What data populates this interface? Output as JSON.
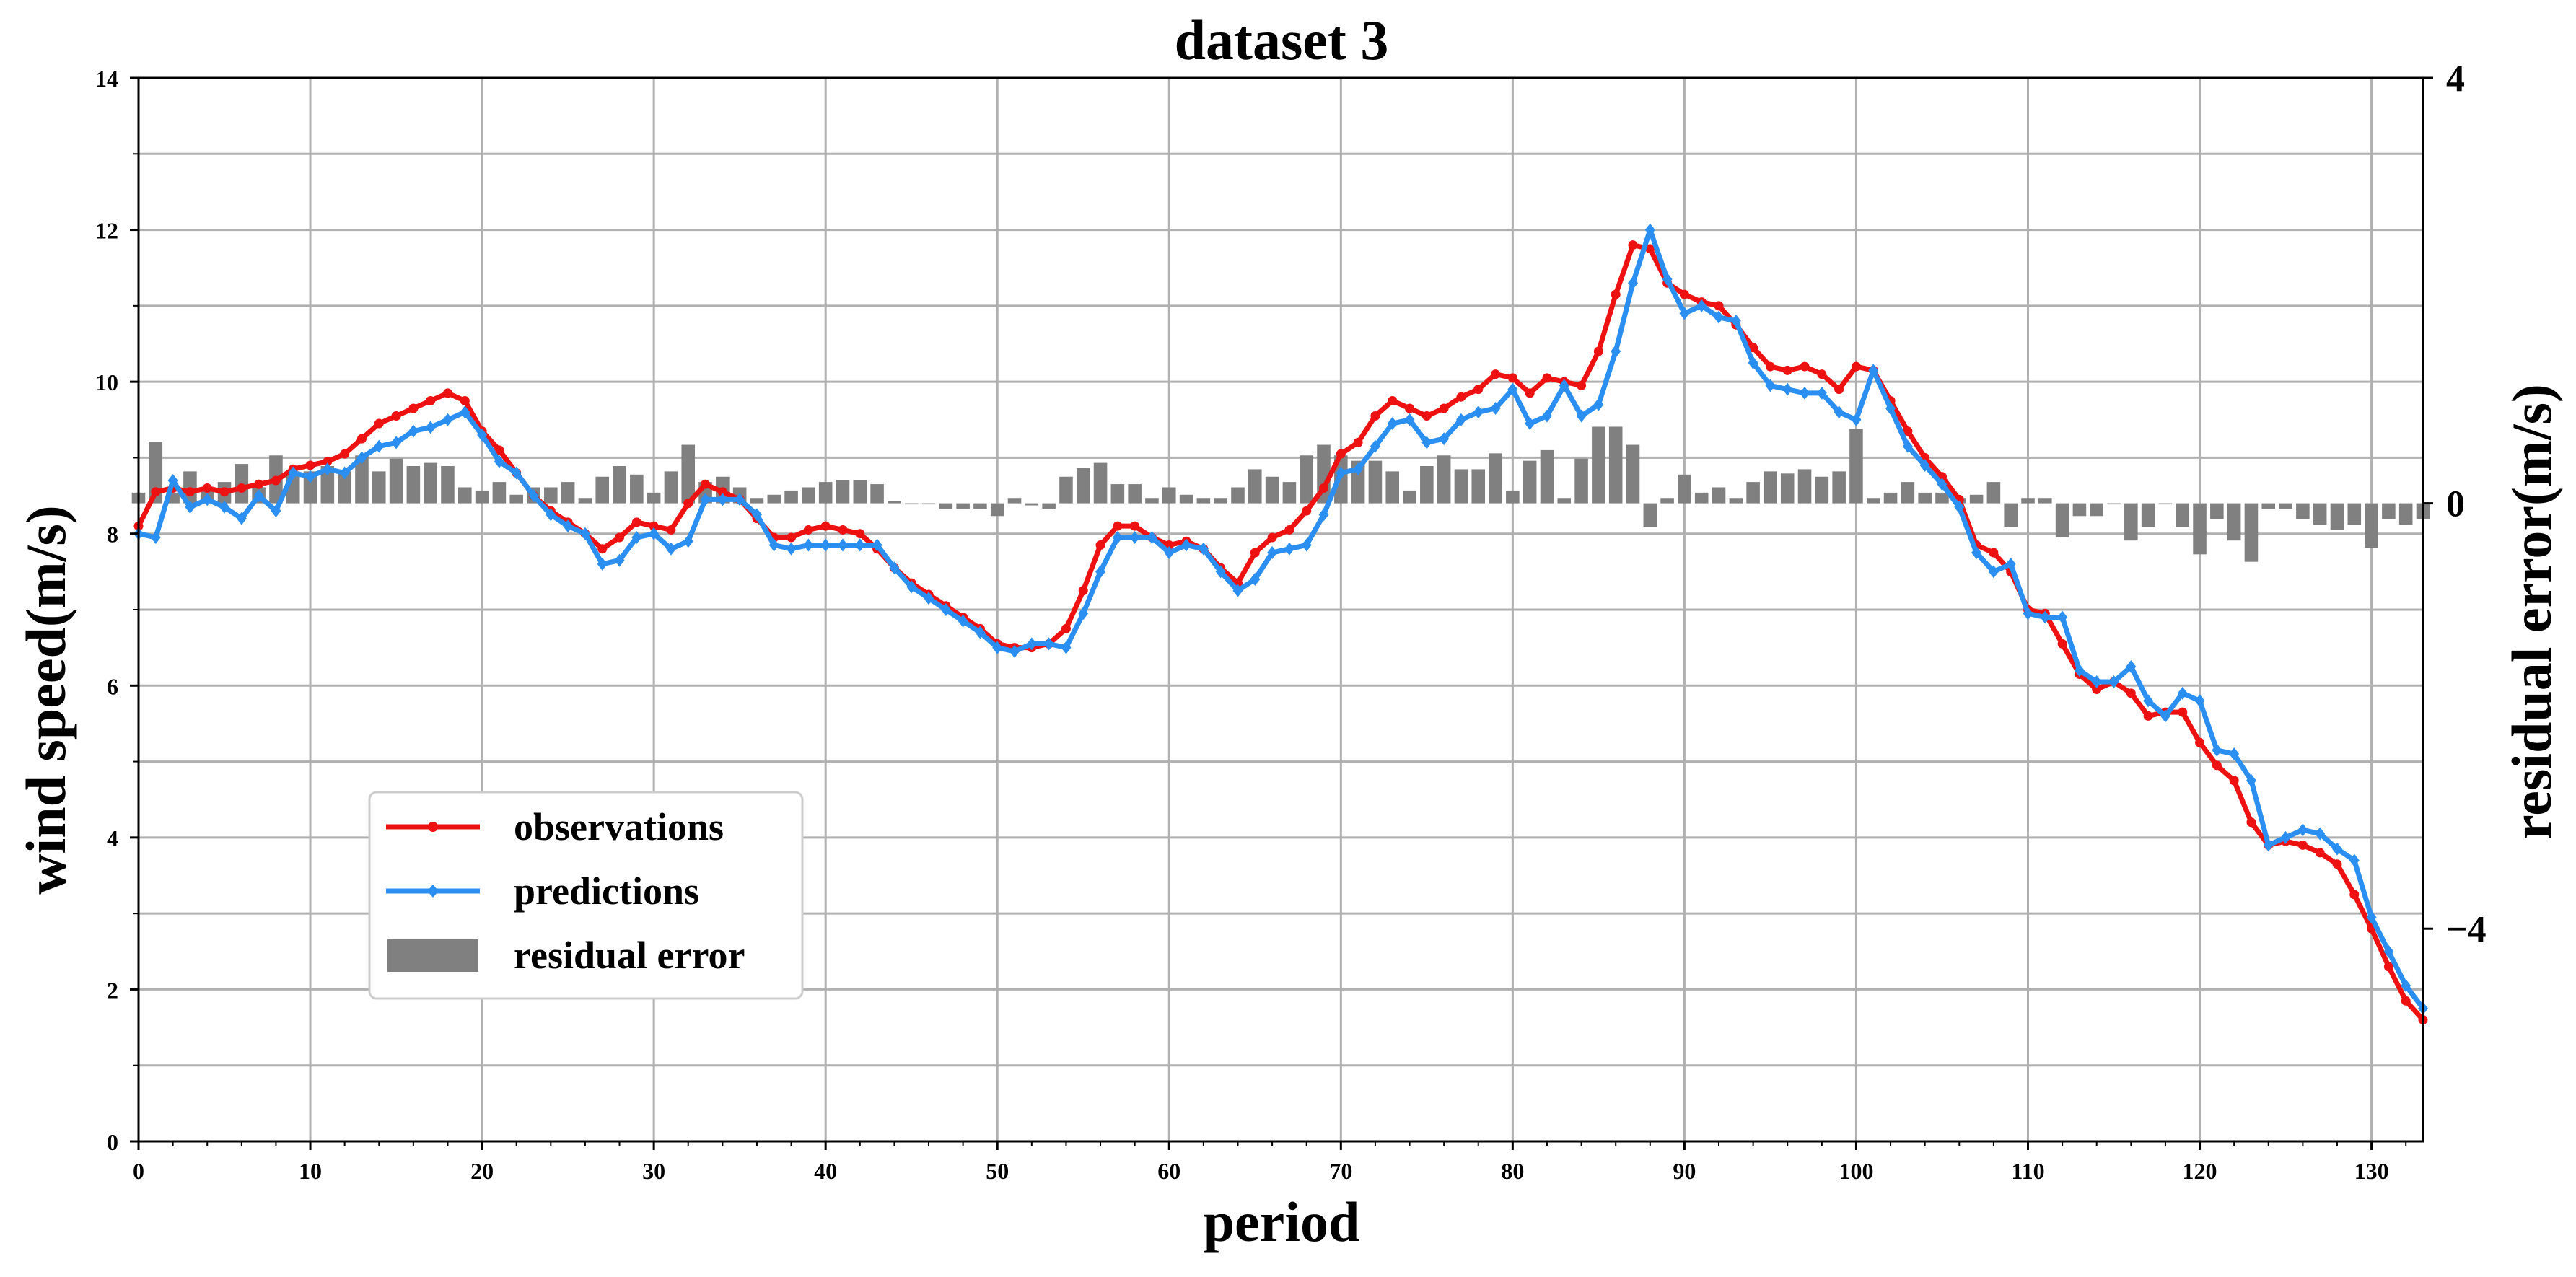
{
  "chart_data": {
    "type": "line",
    "title": "dataset 3",
    "xlabel": "period",
    "ylabel": "wind speed(m/s)",
    "y2label": "residual error(m/s)",
    "xlim": [
      0,
      133
    ],
    "ylim": [
      0,
      14
    ],
    "y2lim": [
      -6,
      4
    ],
    "xticks": [
      0,
      10,
      20,
      30,
      40,
      50,
      60,
      70,
      80,
      90,
      100,
      110,
      120,
      130
    ],
    "yticks": [
      0,
      2,
      4,
      6,
      8,
      10,
      12,
      14
    ],
    "y2ticks": [
      {
        "value": 4,
        "label": "4"
      },
      {
        "value": 0,
        "label": "0"
      },
      {
        "value": -4,
        "label": "−4"
      }
    ],
    "grid": true,
    "legend_position": "lower-left",
    "legend": [
      {
        "label": "observations",
        "kind": "line",
        "marker": "circle",
        "color": "#ee1111"
      },
      {
        "label": "predictions",
        "kind": "line",
        "marker": "diamond",
        "color": "#2a8ff0"
      },
      {
        "label": "residual error",
        "kind": "bar",
        "color": "#808080"
      }
    ],
    "x": [
      0,
      1,
      2,
      3,
      4,
      5,
      6,
      7,
      8,
      9,
      10,
      11,
      12,
      13,
      14,
      15,
      16,
      17,
      18,
      19,
      20,
      21,
      22,
      23,
      24,
      25,
      26,
      27,
      28,
      29,
      30,
      31,
      32,
      33,
      34,
      35,
      36,
      37,
      38,
      39,
      40,
      41,
      42,
      43,
      44,
      45,
      46,
      47,
      48,
      49,
      50,
      51,
      52,
      53,
      54,
      55,
      56,
      57,
      58,
      59,
      60,
      61,
      62,
      63,
      64,
      65,
      66,
      67,
      68,
      69,
      70,
      71,
      72,
      73,
      74,
      75,
      76,
      77,
      78,
      79,
      80,
      81,
      82,
      83,
      84,
      85,
      86,
      87,
      88,
      89,
      90,
      91,
      92,
      93,
      94,
      95,
      96,
      97,
      98,
      99,
      100,
      101,
      102,
      103,
      104,
      105,
      106,
      107,
      108,
      109,
      110,
      111,
      112,
      113,
      114,
      115,
      116,
      117,
      118,
      119,
      120,
      121,
      122,
      123,
      124,
      125,
      126,
      127,
      128,
      129,
      130,
      131,
      132,
      133
    ],
    "series": [
      {
        "name": "observations",
        "axis": "left",
        "color": "#ee1111",
        "values": [
          8.1,
          8.55,
          8.6,
          8.55,
          8.6,
          8.55,
          8.6,
          8.65,
          8.7,
          8.85,
          8.9,
          8.95,
          9.05,
          9.25,
          9.45,
          9.55,
          9.65,
          9.75,
          9.85,
          9.75,
          9.35,
          9.1,
          8.8,
          8.5,
          8.3,
          8.15,
          8.0,
          7.8,
          7.95,
          8.15,
          8.1,
          8.05,
          8.4,
          8.65,
          8.55,
          8.45,
          8.2,
          7.95,
          7.95,
          8.05,
          8.1,
          8.05,
          8.0,
          7.8,
          7.55,
          7.35,
          7.2,
          7.05,
          6.9,
          6.75,
          6.55,
          6.5,
          6.5,
          6.55,
          6.75,
          7.25,
          7.85,
          8.1,
          8.1,
          7.95,
          7.85,
          7.9,
          7.8,
          7.55,
          7.35,
          7.75,
          7.95,
          8.05,
          8.3,
          8.6,
          9.05,
          9.2,
          9.55,
          9.75,
          9.65,
          9.55,
          9.65,
          9.8,
          9.9,
          10.1,
          10.05,
          9.85,
          10.05,
          10.0,
          9.95,
          10.4,
          11.15,
          11.8,
          11.75,
          11.3,
          11.15,
          11.05,
          11.0,
          10.75,
          10.45,
          10.2,
          10.15,
          10.2,
          10.1,
          9.9,
          10.2,
          10.15,
          9.75,
          9.35,
          9.0,
          8.75,
          8.45,
          7.85,
          7.75,
          7.5,
          7.0,
          6.95,
          6.55,
          6.15,
          5.95,
          6.05,
          5.9,
          5.6,
          5.65,
          5.65,
          5.25,
          4.95,
          4.75,
          4.2,
          3.9,
          3.95,
          3.9,
          3.8,
          3.65,
          3.25,
          2.8,
          2.3,
          1.85,
          1.6
        ]
      },
      {
        "name": "predictions",
        "axis": "left",
        "color": "#2a8ff0",
        "values": [
          8.0,
          7.95,
          8.7,
          8.35,
          8.45,
          8.35,
          8.2,
          8.5,
          8.3,
          8.8,
          8.75,
          8.85,
          8.8,
          9.0,
          9.15,
          9.2,
          9.35,
          9.4,
          9.5,
          9.6,
          9.3,
          8.95,
          8.8,
          8.5,
          8.25,
          8.1,
          8.0,
          7.6,
          7.65,
          7.95,
          8.0,
          7.8,
          7.9,
          8.45,
          8.45,
          8.45,
          8.25,
          7.85,
          7.8,
          7.85,
          7.85,
          7.85,
          7.85,
          7.85,
          7.55,
          7.3,
          7.15,
          7.0,
          6.85,
          6.7,
          6.5,
          6.45,
          6.55,
          6.55,
          6.5,
          6.95,
          7.5,
          7.95,
          7.95,
          7.95,
          7.75,
          7.85,
          7.8,
          7.5,
          7.25,
          7.4,
          7.75,
          7.8,
          7.85,
          8.25,
          8.8,
          8.85,
          9.15,
          9.45,
          9.5,
          9.2,
          9.25,
          9.5,
          9.6,
          9.65,
          9.9,
          9.45,
          9.55,
          9.95,
          9.55,
          9.7,
          10.4,
          11.3,
          12.0,
          11.35,
          10.9,
          11.0,
          10.85,
          10.8,
          10.25,
          9.95,
          9.9,
          9.85,
          9.85,
          9.6,
          9.5,
          10.15,
          9.65,
          9.15,
          8.9,
          8.65,
          8.35,
          7.75,
          7.5,
          7.6,
          6.95,
          6.9,
          6.9,
          6.2,
          6.05,
          6.05,
          6.25,
          5.8,
          5.6,
          5.9,
          5.8,
          5.15,
          5.1,
          4.75,
          3.9,
          4.0,
          4.1,
          4.05,
          3.85,
          3.7,
          2.95,
          2.5,
          2.05,
          1.75
        ]
      },
      {
        "name": "residual error",
        "axis": "right",
        "type": "bar",
        "color": "#808080",
        "values": [
          0.1,
          0.58,
          0.1,
          0.3,
          0.15,
          0.2,
          0.37,
          0.15,
          0.45,
          0.3,
          0.3,
          0.35,
          0.3,
          0.45,
          0.3,
          0.42,
          0.35,
          0.38,
          0.35,
          0.15,
          0.12,
          0.2,
          0.08,
          0.15,
          0.15,
          0.2,
          0.05,
          0.25,
          0.35,
          0.27,
          0.1,
          0.3,
          0.55,
          0.2,
          0.25,
          0.15,
          0.05,
          0.08,
          0.12,
          0.15,
          0.2,
          0.22,
          0.22,
          0.18,
          0.02,
          0.0,
          0.0,
          -0.05,
          -0.05,
          -0.05,
          -0.12,
          0.05,
          -0.02,
          -0.05,
          0.25,
          0.33,
          0.38,
          0.18,
          0.18,
          0.05,
          0.15,
          0.08,
          0.05,
          0.05,
          0.15,
          0.32,
          0.25,
          0.2,
          0.45,
          0.55,
          0.45,
          0.4,
          0.4,
          0.3,
          0.12,
          0.35,
          0.45,
          0.32,
          0.32,
          0.47,
          0.12,
          0.4,
          0.5,
          0.05,
          0.42,
          0.72,
          0.72,
          0.55,
          -0.22,
          0.05,
          0.27,
          0.1,
          0.15,
          0.05,
          0.2,
          0.3,
          0.28,
          0.32,
          0.25,
          0.3,
          0.7,
          0.05,
          0.1,
          0.2,
          0.1,
          0.1,
          0.05,
          0.08,
          0.2,
          -0.22,
          0.05,
          0.05,
          -0.32,
          -0.12,
          -0.12,
          0.0,
          -0.35,
          -0.22,
          0.0,
          -0.22,
          -0.48,
          -0.15,
          -0.35,
          -0.55,
          -0.05,
          -0.05,
          -0.15,
          -0.2,
          -0.25,
          -0.2,
          -0.42,
          -0.15,
          -0.2,
          -0.15
        ]
      }
    ]
  }
}
